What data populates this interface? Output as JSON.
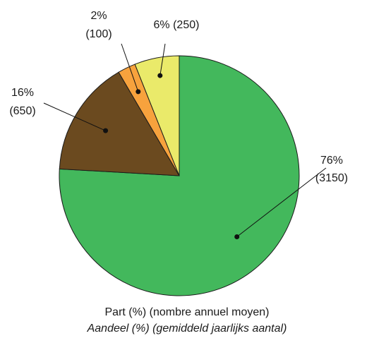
{
  "chart_data": {
    "type": "pie",
    "slices": [
      {
        "label": "76%",
        "value": 3150,
        "value_label": "(3150)",
        "color": "#43b85c"
      },
      {
        "label": "16%",
        "value": 650,
        "value_label": "(650)",
        "color": "#6b4a1f"
      },
      {
        "label": "2%",
        "value": 100,
        "value_label": "(100)",
        "color": "#f7a23d"
      },
      {
        "label": "6%",
        "value": 250,
        "value_label": "(250)",
        "color": "#eaea6a"
      }
    ],
    "caption_fr": "Part (%) (nombre annuel moyen)",
    "caption_nl": "Aandeel (%) (gemiddeld jaarlijks aantal)"
  }
}
